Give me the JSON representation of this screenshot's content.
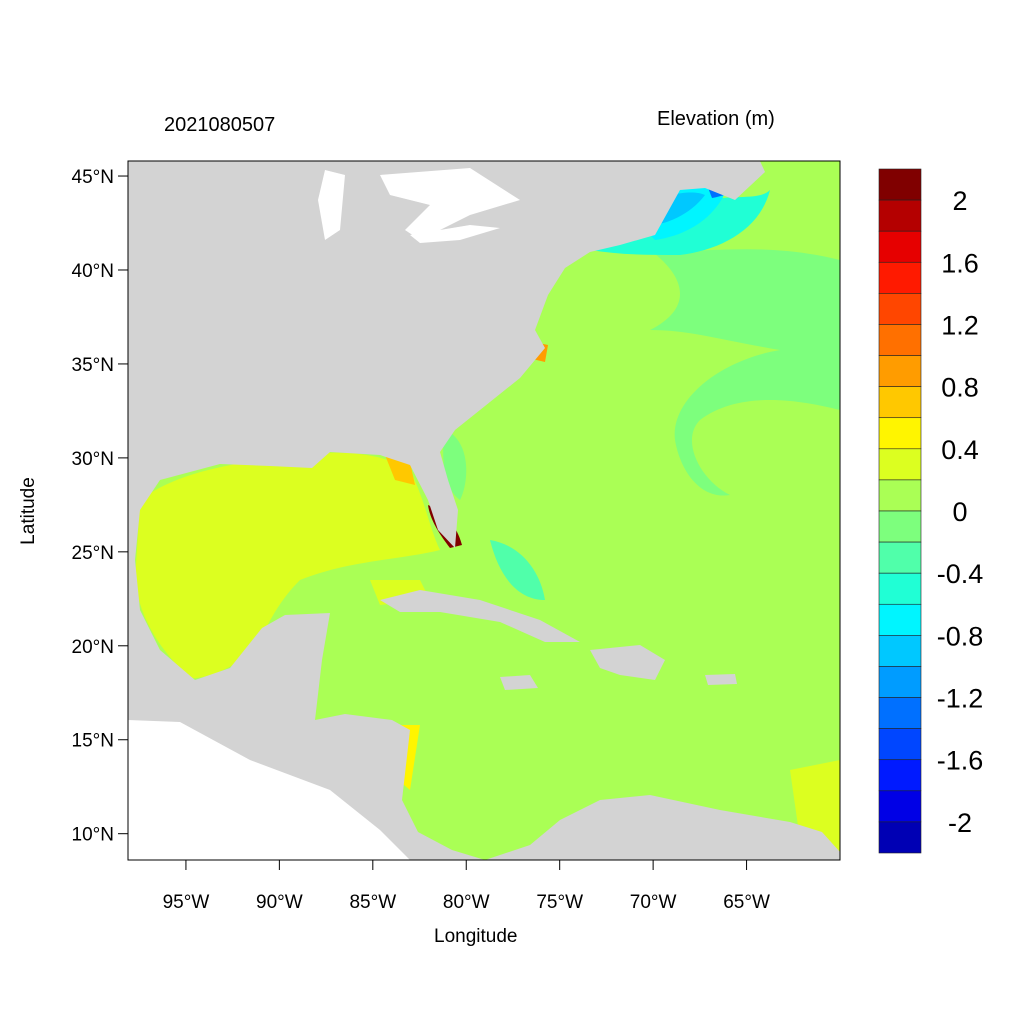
{
  "chart_data": {
    "type": "heatmap",
    "title_left": "2021080507",
    "title_right": "Elevation (m)",
    "xlabel": "Longitude",
    "ylabel": "Latitude",
    "xlim": [
      -98.1,
      -60.0
    ],
    "ylim": [
      8.6,
      45.8
    ],
    "x_ticks": [
      {
        "value": -95,
        "label": "95°W"
      },
      {
        "value": -90,
        "label": "90°W"
      },
      {
        "value": -85,
        "label": "85°W"
      },
      {
        "value": -80,
        "label": "80°W"
      },
      {
        "value": -75,
        "label": "75°W"
      },
      {
        "value": -70,
        "label": "70°W"
      },
      {
        "value": -65,
        "label": "65°W"
      }
    ],
    "y_ticks": [
      {
        "value": 45,
        "label": "45°N"
      },
      {
        "value": 40,
        "label": "40°N"
      },
      {
        "value": 35,
        "label": "35°N"
      },
      {
        "value": 30,
        "label": "30°N"
      },
      {
        "value": 25,
        "label": "25°N"
      },
      {
        "value": 20,
        "label": "20°N"
      },
      {
        "value": 15,
        "label": "15°N"
      },
      {
        "value": 10,
        "label": "10°N"
      }
    ],
    "colorbar": {
      "levels": [
        2.0,
        1.8,
        1.6,
        1.4,
        1.2,
        1.0,
        0.8,
        0.6,
        0.4,
        0.2,
        0.0,
        -0.2,
        -0.4,
        -0.6,
        -0.8,
        -1.0,
        -1.2,
        -1.4,
        -1.6,
        -1.8,
        -2.0
      ],
      "labels": [
        "2",
        "1.6",
        "1.2",
        "0.8",
        "0.4",
        "0",
        "-0.4",
        "-0.8",
        "-1.2",
        "-1.6",
        "-2"
      ],
      "colors": [
        "#800000",
        "#b40000",
        "#e60000",
        "#ff1a00",
        "#ff4600",
        "#ff7000",
        "#ff9c00",
        "#ffc800",
        "#fff500",
        "#dcff20",
        "#aaff55",
        "#7dff7d",
        "#50ffaa",
        "#20ffd5",
        "#00f5ff",
        "#00c8ff",
        "#009cff",
        "#0070ff",
        "#0046ff",
        "#001aff",
        "#0000e6",
        "#0000b4"
      ]
    },
    "land_color": "#d3d3d3"
  }
}
